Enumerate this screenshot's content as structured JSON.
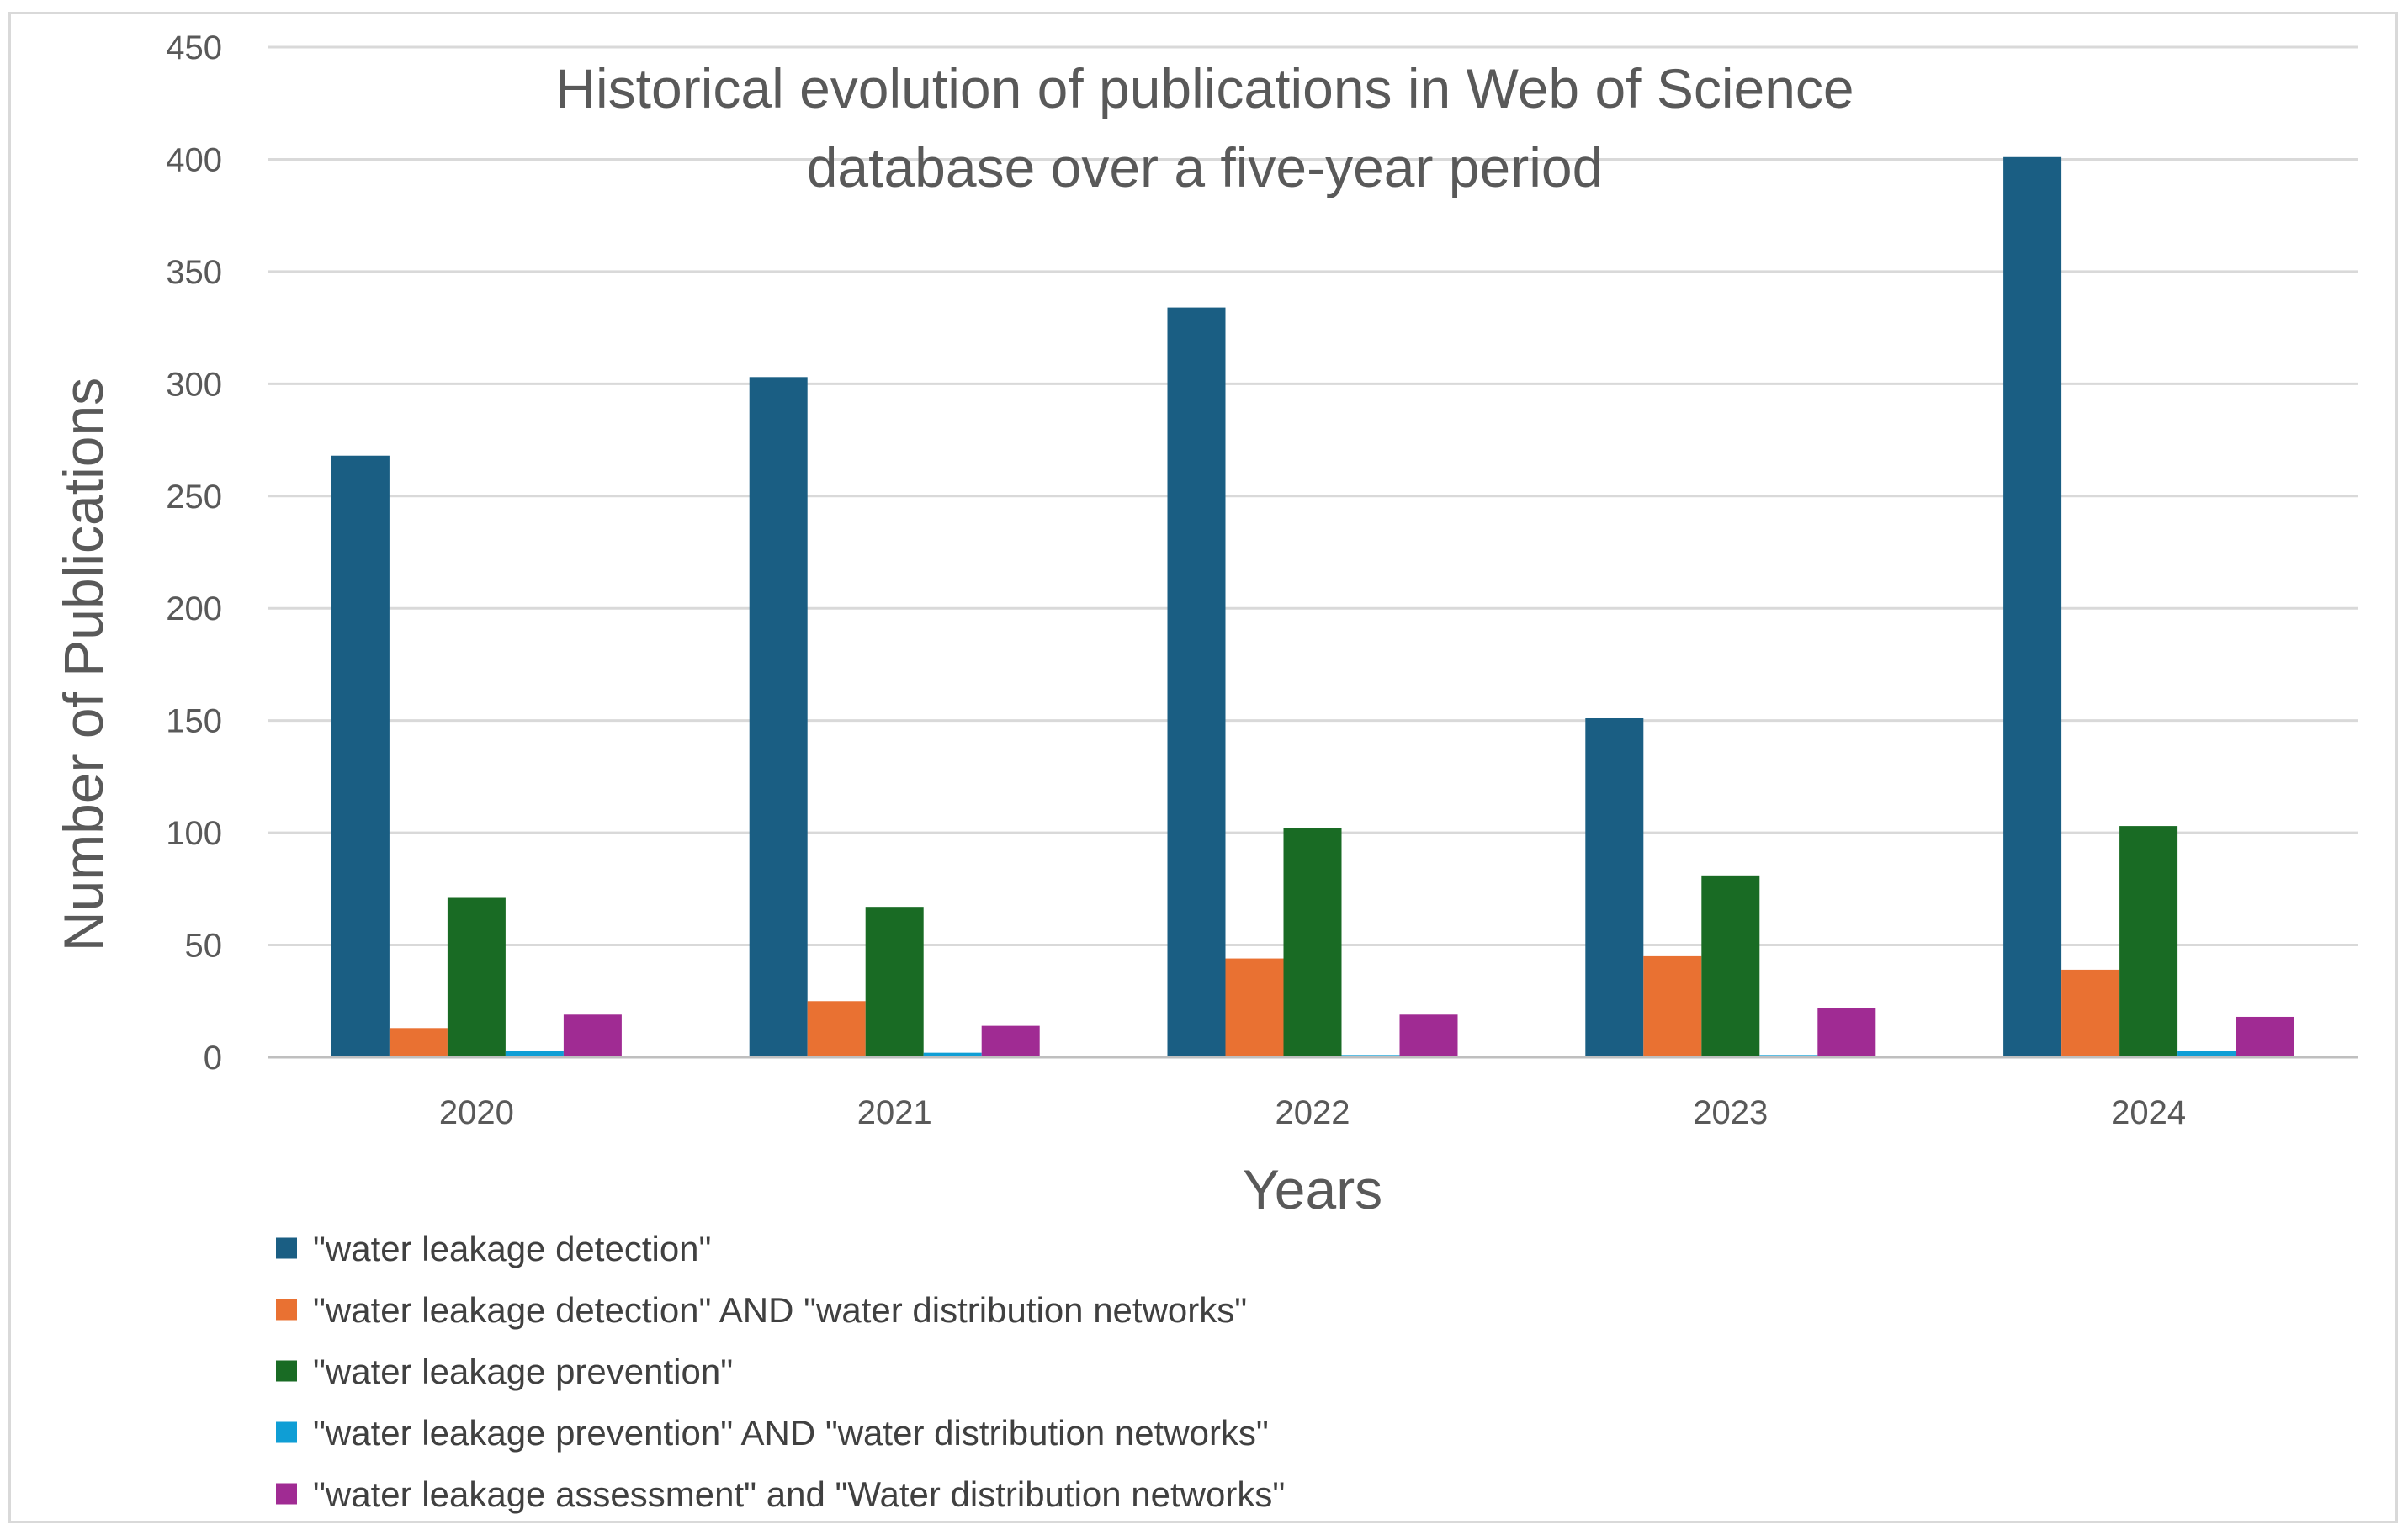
{
  "chart_data": {
    "type": "bar",
    "title": "Historical evolution of publications in Web of Science database  over a five-year period",
    "title_lines": [
      "Historical evolution of publications in Web of Science",
      "database  over a five-year period"
    ],
    "xlabel": "Years",
    "ylabel": "Number of Publications",
    "ylim": [
      0,
      450
    ],
    "yticks": [
      0,
      50,
      100,
      150,
      200,
      250,
      300,
      350,
      400,
      450
    ],
    "grid": true,
    "legend_position": "bottom-left",
    "categories": [
      "2020",
      "2021",
      "2022",
      "2023",
      "2024"
    ],
    "series": [
      {
        "name": "\"water leakage detection\"",
        "color": "#1a5e83",
        "values": [
          268,
          303,
          334,
          151,
          401
        ]
      },
      {
        "name": "\"water leakage detection\" AND \"water distribution networks\"",
        "color": "#e97132",
        "values": [
          13,
          25,
          44,
          45,
          39
        ]
      },
      {
        "name": "\"water leakage prevention\"",
        "color": "#196b24",
        "values": [
          71,
          67,
          102,
          81,
          103
        ]
      },
      {
        "name": "\"water leakage prevention\" AND \"water distribution networks\"",
        "color": "#0f9ed5",
        "values": [
          3,
          2,
          1,
          1,
          3
        ]
      },
      {
        "name": "\"water leakage assessment\" and \"Water distribution networks\"",
        "color": "#a02b93",
        "values": [
          19,
          14,
          19,
          22,
          18
        ]
      }
    ]
  }
}
